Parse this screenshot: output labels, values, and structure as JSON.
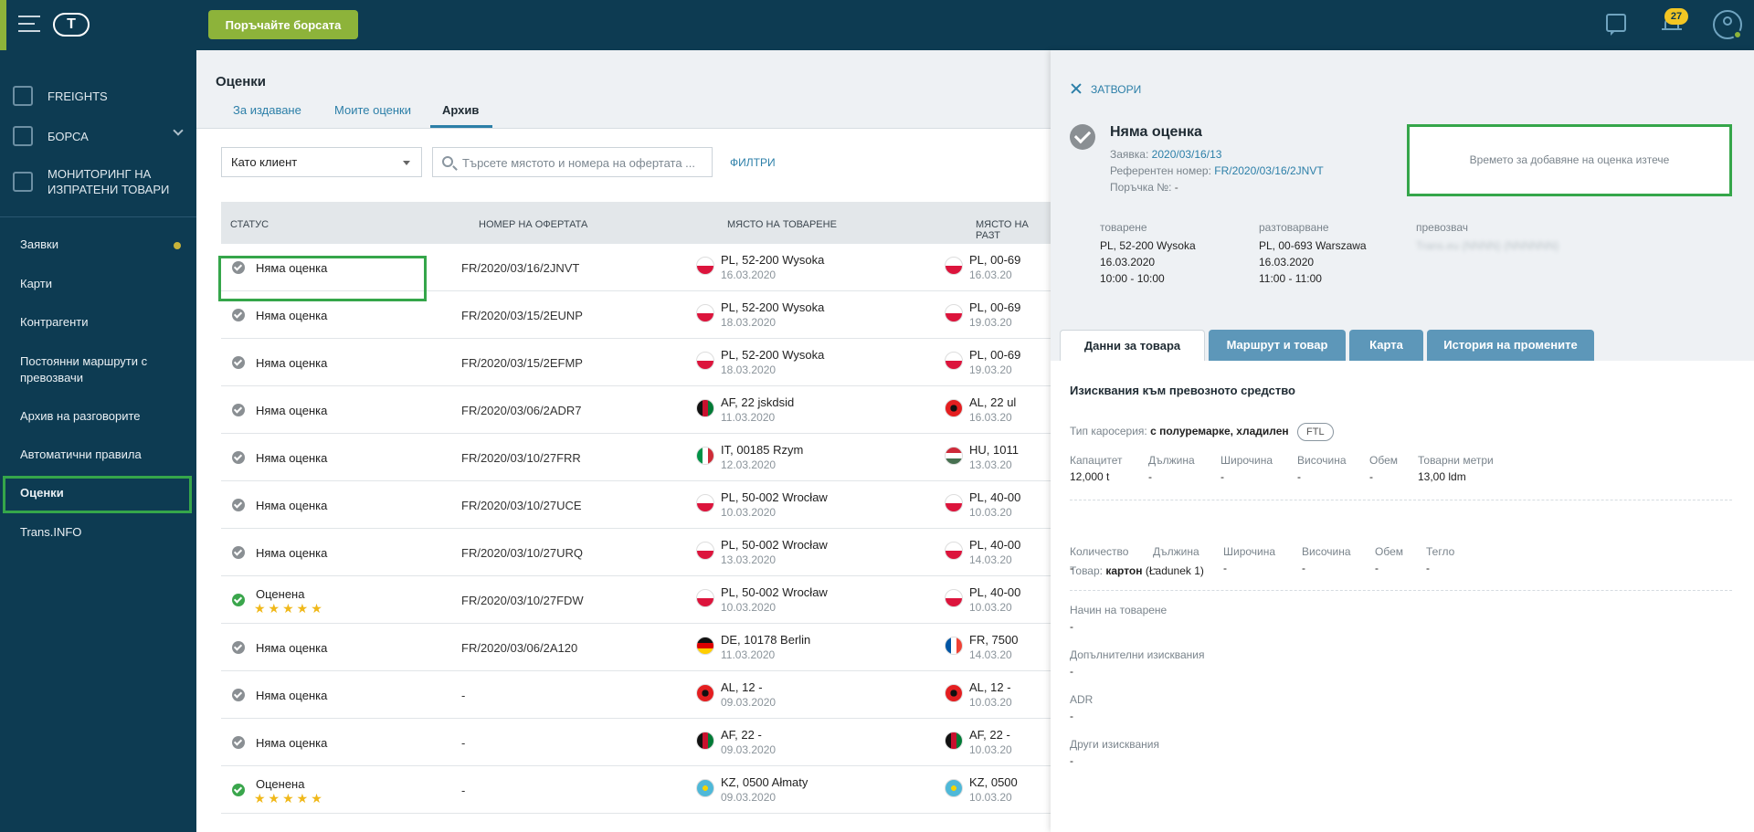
{
  "topbar": {
    "search_market_button": "Поръчайте борсата",
    "logo_text": "T",
    "notifications_count": "27"
  },
  "sidebar": {
    "main_items": [
      {
        "label": "FREIGHTS",
        "icon": "freights-icon"
      },
      {
        "label": "БОРСА",
        "icon": "exchange-box-icon"
      },
      {
        "label": "МОНИТОРИНГ НА ИЗПРАТЕНИ ТОВАРИ",
        "icon": "monitoring-icon"
      }
    ],
    "sub_items": [
      "Заявки",
      "Карти",
      "Контрагенти",
      "Постоянни маршрути с превозвачи",
      "Архив на разговорите",
      "Автоматични правила",
      "Оценки",
      "Trans.INFO"
    ]
  },
  "main": {
    "title": "Оценки",
    "tabs": [
      "За издаване",
      "Моите оценки",
      "Архив"
    ],
    "select_value": "Като клиент",
    "search_placeholder": "Търсете мястото и номера на офертата ...",
    "filters_label": "ФИЛТРИ",
    "columns": [
      "СТАТУС",
      "НОМЕР НА ОФЕРТАТА",
      "МЯСТО НА ТОВАРЕНЕ",
      "МЯСТО НА РАЗТ"
    ],
    "rows": [
      {
        "status": "Няма оценка",
        "rated": false,
        "offer": "FR/2020/03/16/2JNVT",
        "load_place": "PL, 52-200 Wysoka",
        "load_date": "16.03.2020",
        "load_flag": "pl",
        "unload_place": "PL, 00-69",
        "unload_date": "16.03.20",
        "unload_flag": "pl"
      },
      {
        "status": "Няма оценка",
        "rated": false,
        "offer": "FR/2020/03/15/2EUNP",
        "load_place": "PL, 52-200 Wysoka",
        "load_date": "18.03.2020",
        "load_flag": "pl",
        "unload_place": "PL, 00-69",
        "unload_date": "19.03.20",
        "unload_flag": "pl"
      },
      {
        "status": "Няма оценка",
        "rated": false,
        "offer": "FR/2020/03/15/2EFMP",
        "load_place": "PL, 52-200 Wysoka",
        "load_date": "18.03.2020",
        "load_flag": "pl",
        "unload_place": "PL, 00-69",
        "unload_date": "19.03.20",
        "unload_flag": "pl"
      },
      {
        "status": "Няма оценка",
        "rated": false,
        "offer": "FR/2020/03/06/2ADR7",
        "load_place": "AF, 22 jskdsid",
        "load_date": "11.03.2020",
        "load_flag": "af",
        "unload_place": "AL, 22 ul",
        "unload_date": "16.03.20",
        "unload_flag": "al"
      },
      {
        "status": "Няма оценка",
        "rated": false,
        "offer": "FR/2020/03/10/27FRR",
        "load_place": "IT, 00185 Rzym",
        "load_date": "12.03.2020",
        "load_flag": "it",
        "unload_place": "HU, 1011",
        "unload_date": "13.03.20",
        "unload_flag": "hu"
      },
      {
        "status": "Няма оценка",
        "rated": false,
        "offer": "FR/2020/03/10/27UCE",
        "load_place": "PL, 50-002 Wrocław",
        "load_date": "10.03.2020",
        "load_flag": "pl",
        "unload_place": "PL, 40-00",
        "unload_date": "10.03.20",
        "unload_flag": "pl"
      },
      {
        "status": "Няма оценка",
        "rated": false,
        "offer": "FR/2020/03/10/27URQ",
        "load_place": "PL, 50-002 Wrocław",
        "load_date": "13.03.2020",
        "load_flag": "pl",
        "unload_place": "PL, 40-00",
        "unload_date": "14.03.20",
        "unload_flag": "pl"
      },
      {
        "status": "Оценена",
        "rated": true,
        "stars": "★★★★★",
        "offer": "FR/2020/03/10/27FDW",
        "load_place": "PL, 50-002 Wrocław",
        "load_date": "10.03.2020",
        "load_flag": "pl",
        "unload_place": "PL, 40-00",
        "unload_date": "10.03.20",
        "unload_flag": "pl"
      },
      {
        "status": "Няма оценка",
        "rated": false,
        "offer": "FR/2020/03/06/2A120",
        "load_place": "DE, 10178 Berlin",
        "load_date": "11.03.2020",
        "load_flag": "de",
        "unload_place": "FR, 7500",
        "unload_date": "14.03.20",
        "unload_flag": "fr"
      },
      {
        "status": "Няма оценка",
        "rated": false,
        "offer": "-",
        "load_place": "AL, 12 -",
        "load_date": "09.03.2020",
        "load_flag": "al",
        "unload_place": "AL, 12 -",
        "unload_date": "10.03.20",
        "unload_flag": "al"
      },
      {
        "status": "Няма оценка",
        "rated": false,
        "offer": "-",
        "load_place": "AF, 22 -",
        "load_date": "09.03.2020",
        "load_flag": "af",
        "unload_place": "AF, 22 -",
        "unload_date": "10.03.20",
        "unload_flag": "af"
      },
      {
        "status": "Оценена",
        "rated": true,
        "stars": "★★★★★",
        "offer": "-",
        "load_place": "KZ, 0500 Ałmaty",
        "load_date": "09.03.2020",
        "load_flag": "kz",
        "unload_place": "KZ, 0500",
        "unload_date": "10.03.20",
        "unload_flag": "kz"
      }
    ]
  },
  "detail": {
    "close_label": "ЗАТВОРИ",
    "status": "Няма оценка",
    "request_label": "Заявка:",
    "request_value": "2020/03/16/13",
    "ref_label": "Референтен номер:",
    "ref_value": "FR/2020/03/16/2JNVT",
    "order_label": "Поръчка №:",
    "order_value": "-",
    "expired_message": "Времето за добавяне на оценка изтече",
    "loading": {
      "label": "товарене",
      "place": "PL, 52-200 Wysoka",
      "date": "16.03.2020",
      "time": "10:00 - 10:00"
    },
    "unloading": {
      "label": "разтоварване",
      "place": "PL, 00-693 Warszawa",
      "date": "16.03.2020",
      "time": "11:00 - 11:00"
    },
    "carrier": {
      "label": "превозвач",
      "value": "Trans.eu (NNNN) (NNNNNN)"
    },
    "tabs": [
      "Данни за товара",
      "Маршрут и товар",
      "Карта",
      "История на промените"
    ],
    "section_title": "Изисквания към превозното средство",
    "body_type_label": "Тип каросерия:",
    "body_type_value": "с полуремарке, хладилен",
    "ftl": "FTL",
    "vehicle_specs": [
      {
        "k": "Капацитет",
        "v": "12,000 t"
      },
      {
        "k": "Дължина",
        "v": "-"
      },
      {
        "k": "Широчина",
        "v": "-"
      },
      {
        "k": "Височина",
        "v": "-"
      },
      {
        "k": "Обем",
        "v": "-"
      },
      {
        "k": "Товарни метри",
        "v": "13,00 ldm"
      }
    ],
    "cargo_label": "Товар:",
    "cargo_value": "картон",
    "cargo_note": "(Ładunek 1)",
    "cargo_specs": [
      {
        "k": "Количество",
        "v": "-"
      },
      {
        "k": "Дължина",
        "v": "-"
      },
      {
        "k": "Широчина",
        "v": "-"
      },
      {
        "k": "Височина",
        "v": "-"
      },
      {
        "k": "Обем",
        "v": "-"
      },
      {
        "k": "Тегло",
        "v": "-"
      }
    ],
    "extra": [
      {
        "k": "Начин на товарене",
        "v": "-"
      },
      {
        "k": "Допълнителни изисквания",
        "v": "-"
      },
      {
        "k": "ADR",
        "v": "-"
      },
      {
        "k": "Други изисквания",
        "v": "-"
      }
    ]
  },
  "colors": {
    "navy": "#0d3b52",
    "accent_green": "#8db33a",
    "link_blue": "#2c7fa8",
    "highlight_green": "#35a64a",
    "star_yellow": "#f0b81a"
  }
}
